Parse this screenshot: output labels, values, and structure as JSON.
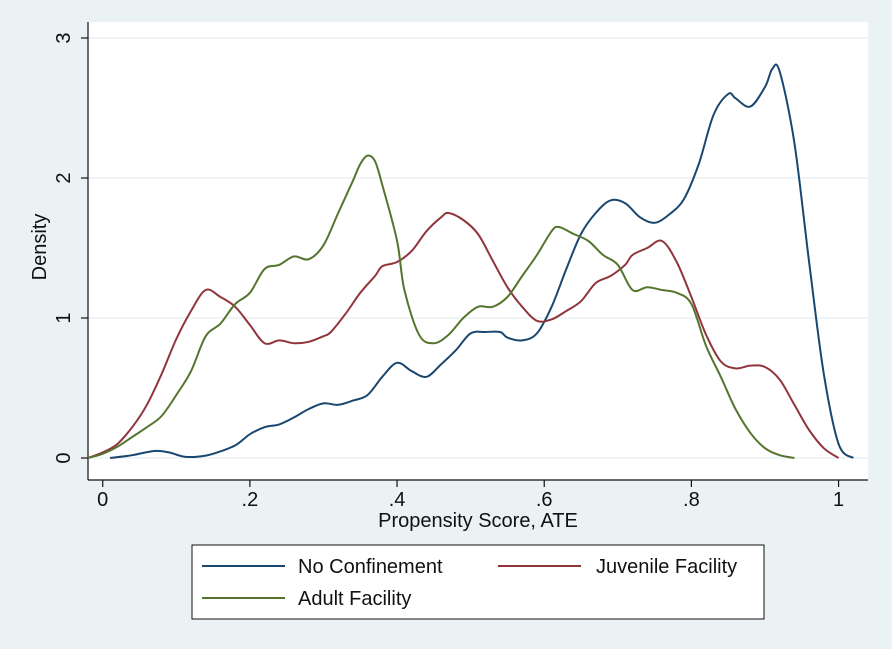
{
  "chart_data": {
    "type": "line",
    "title": "",
    "xlabel": "Propensity Score, ATE",
    "ylabel": "Density",
    "xlim": [
      -0.02,
      1.04
    ],
    "ylim": [
      0,
      3
    ],
    "x_ticks": [
      0,
      0.2,
      0.4,
      0.6,
      0.8,
      1
    ],
    "x_tick_labels": [
      "0",
      ".2",
      ".4",
      ".6",
      ".8",
      "1"
    ],
    "y_ticks": [
      0,
      1,
      2,
      3
    ],
    "y_tick_labels": [
      "0",
      "1",
      "2",
      "3"
    ],
    "grid": "horizontal",
    "legend_position": "bottom",
    "series": [
      {
        "name": "No Confinement",
        "color": "#1a476f",
        "points": [
          [
            0.01,
            0.0
          ],
          [
            0.04,
            0.02
          ],
          [
            0.07,
            0.05
          ],
          [
            0.09,
            0.04
          ],
          [
            0.11,
            0.01
          ],
          [
            0.13,
            0.01
          ],
          [
            0.15,
            0.03
          ],
          [
            0.18,
            0.09
          ],
          [
            0.2,
            0.17
          ],
          [
            0.22,
            0.22
          ],
          [
            0.24,
            0.24
          ],
          [
            0.26,
            0.29
          ],
          [
            0.28,
            0.35
          ],
          [
            0.3,
            0.39
          ],
          [
            0.32,
            0.38
          ],
          [
            0.34,
            0.41
          ],
          [
            0.36,
            0.45
          ],
          [
            0.38,
            0.58
          ],
          [
            0.4,
            0.68
          ],
          [
            0.42,
            0.62
          ],
          [
            0.44,
            0.58
          ],
          [
            0.46,
            0.67
          ],
          [
            0.48,
            0.77
          ],
          [
            0.5,
            0.89
          ],
          [
            0.52,
            0.9
          ],
          [
            0.54,
            0.9
          ],
          [
            0.55,
            0.86
          ],
          [
            0.57,
            0.84
          ],
          [
            0.59,
            0.89
          ],
          [
            0.61,
            1.08
          ],
          [
            0.63,
            1.35
          ],
          [
            0.65,
            1.6
          ],
          [
            0.67,
            1.75
          ],
          [
            0.69,
            1.84
          ],
          [
            0.71,
            1.82
          ],
          [
            0.73,
            1.72
          ],
          [
            0.75,
            1.68
          ],
          [
            0.77,
            1.74
          ],
          [
            0.79,
            1.85
          ],
          [
            0.81,
            2.1
          ],
          [
            0.83,
            2.45
          ],
          [
            0.85,
            2.6
          ],
          [
            0.86,
            2.57
          ],
          [
            0.88,
            2.51
          ],
          [
            0.9,
            2.65
          ],
          [
            0.91,
            2.78
          ],
          [
            0.92,
            2.76
          ],
          [
            0.94,
            2.25
          ],
          [
            0.96,
            1.4
          ],
          [
            0.98,
            0.6
          ],
          [
            1.0,
            0.1
          ],
          [
            1.02,
            0.0
          ]
        ]
      },
      {
        "name": "Juvenile Facility",
        "color": "#90353b",
        "points": [
          [
            -0.02,
            0.0
          ],
          [
            0.0,
            0.04
          ],
          [
            0.02,
            0.1
          ],
          [
            0.04,
            0.22
          ],
          [
            0.06,
            0.38
          ],
          [
            0.08,
            0.6
          ],
          [
            0.1,
            0.85
          ],
          [
            0.12,
            1.05
          ],
          [
            0.14,
            1.2
          ],
          [
            0.16,
            1.15
          ],
          [
            0.18,
            1.08
          ],
          [
            0.2,
            0.95
          ],
          [
            0.22,
            0.82
          ],
          [
            0.24,
            0.84
          ],
          [
            0.26,
            0.82
          ],
          [
            0.28,
            0.83
          ],
          [
            0.3,
            0.87
          ],
          [
            0.31,
            0.9
          ],
          [
            0.33,
            1.03
          ],
          [
            0.35,
            1.18
          ],
          [
            0.37,
            1.3
          ],
          [
            0.38,
            1.37
          ],
          [
            0.4,
            1.4
          ],
          [
            0.42,
            1.48
          ],
          [
            0.44,
            1.62
          ],
          [
            0.46,
            1.72
          ],
          [
            0.47,
            1.75
          ],
          [
            0.49,
            1.7
          ],
          [
            0.51,
            1.6
          ],
          [
            0.53,
            1.41
          ],
          [
            0.55,
            1.22
          ],
          [
            0.57,
            1.08
          ],
          [
            0.59,
            0.98
          ],
          [
            0.61,
            0.99
          ],
          [
            0.63,
            1.05
          ],
          [
            0.65,
            1.12
          ],
          [
            0.67,
            1.25
          ],
          [
            0.69,
            1.3
          ],
          [
            0.71,
            1.38
          ],
          [
            0.72,
            1.45
          ],
          [
            0.74,
            1.5
          ],
          [
            0.76,
            1.55
          ],
          [
            0.78,
            1.4
          ],
          [
            0.8,
            1.15
          ],
          [
            0.82,
            0.88
          ],
          [
            0.84,
            0.69
          ],
          [
            0.86,
            0.64
          ],
          [
            0.88,
            0.66
          ],
          [
            0.9,
            0.65
          ],
          [
            0.92,
            0.56
          ],
          [
            0.94,
            0.38
          ],
          [
            0.96,
            0.2
          ],
          [
            0.98,
            0.07
          ],
          [
            1.0,
            0.0
          ]
        ]
      },
      {
        "name": "Adult Facility",
        "color": "#55752f",
        "points": [
          [
            -0.02,
            0.0
          ],
          [
            0.0,
            0.03
          ],
          [
            0.02,
            0.08
          ],
          [
            0.04,
            0.15
          ],
          [
            0.06,
            0.22
          ],
          [
            0.08,
            0.3
          ],
          [
            0.1,
            0.45
          ],
          [
            0.12,
            0.62
          ],
          [
            0.14,
            0.87
          ],
          [
            0.16,
            0.96
          ],
          [
            0.18,
            1.1
          ],
          [
            0.2,
            1.18
          ],
          [
            0.22,
            1.35
          ],
          [
            0.24,
            1.38
          ],
          [
            0.26,
            1.44
          ],
          [
            0.28,
            1.42
          ],
          [
            0.3,
            1.52
          ],
          [
            0.32,
            1.75
          ],
          [
            0.34,
            1.98
          ],
          [
            0.35,
            2.1
          ],
          [
            0.36,
            2.16
          ],
          [
            0.37,
            2.12
          ],
          [
            0.38,
            1.95
          ],
          [
            0.4,
            1.55
          ],
          [
            0.41,
            1.2
          ],
          [
            0.43,
            0.88
          ],
          [
            0.45,
            0.82
          ],
          [
            0.47,
            0.88
          ],
          [
            0.49,
            1.0
          ],
          [
            0.51,
            1.08
          ],
          [
            0.53,
            1.08
          ],
          [
            0.55,
            1.15
          ],
          [
            0.57,
            1.3
          ],
          [
            0.59,
            1.45
          ],
          [
            0.61,
            1.62
          ],
          [
            0.62,
            1.65
          ],
          [
            0.64,
            1.6
          ],
          [
            0.66,
            1.55
          ],
          [
            0.68,
            1.45
          ],
          [
            0.7,
            1.38
          ],
          [
            0.72,
            1.2
          ],
          [
            0.74,
            1.22
          ],
          [
            0.76,
            1.2
          ],
          [
            0.78,
            1.18
          ],
          [
            0.8,
            1.1
          ],
          [
            0.82,
            0.8
          ],
          [
            0.84,
            0.58
          ],
          [
            0.86,
            0.35
          ],
          [
            0.88,
            0.18
          ],
          [
            0.9,
            0.07
          ],
          [
            0.92,
            0.02
          ],
          [
            0.94,
            0.0
          ]
        ]
      }
    ]
  }
}
